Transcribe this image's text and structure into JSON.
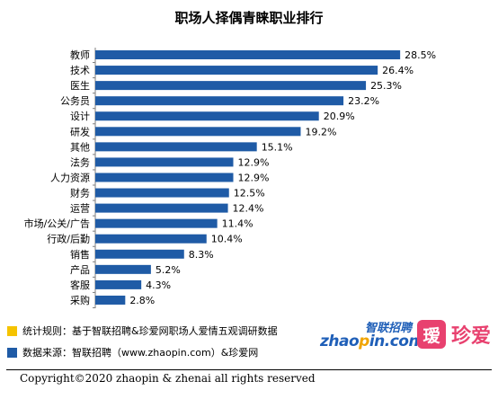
{
  "chart_data": {
    "type": "bar",
    "orientation": "horizontal",
    "title": "职场人择偶青睐职业排行",
    "categories": [
      "教师",
      "技术",
      "医生",
      "公务员",
      "设计",
      "研发",
      "其他",
      "法务",
      "人力资源",
      "财务",
      "运营",
      "市场/公关/广告",
      "行政/后勤",
      "销售",
      "产品",
      "客服",
      "采购"
    ],
    "values": [
      28.5,
      26.4,
      25.3,
      23.2,
      20.9,
      19.2,
      15.1,
      12.9,
      12.9,
      12.5,
      12.4,
      11.4,
      10.4,
      8.3,
      5.2,
      4.3,
      2.8
    ],
    "value_labels": [
      "28.5%",
      "26.4%",
      "25.3%",
      "23.2%",
      "20.9%",
      "19.2%",
      "15.1%",
      "12.9%",
      "12.9%",
      "12.5%",
      "12.4%",
      "11.4%",
      "10.4%",
      "8.3%",
      "5.2%",
      "4.3%",
      "2.8%"
    ],
    "value_unit": "%",
    "bar_color": "#1f5ba6",
    "xlim": [
      0,
      30
    ],
    "grid": false,
    "legend": "none"
  },
  "notes": [
    {
      "text": "统计规则：基于智联招聘&珍爱网职场人爱情五观调研数据",
      "color": "#f5c300"
    },
    {
      "text": "数据来源：智联招聘（www.zhaopin.com）&珍爱网",
      "color": "#1f5ba6"
    }
  ],
  "logos": {
    "zhaopin_cn": "智联招聘",
    "zhaopin_en_pre": "zhao",
    "zhaopin_en_dot": "p",
    "zhaopin_en_post": "in.com",
    "zhenai_icon": "瑷",
    "zhenai_text": "珍爱",
    "zhaopin_color": "#1f5fb8",
    "zhenai_color": "#e8416f"
  },
  "copyright": "Copyright©2020 zhaopin & zhenai  all rights reserved"
}
